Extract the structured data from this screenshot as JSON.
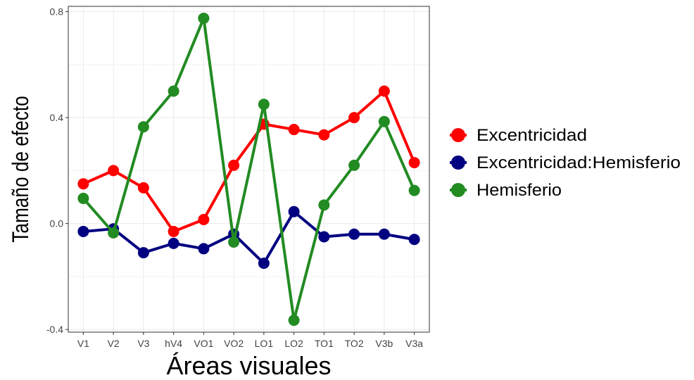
{
  "chart_data": {
    "type": "line",
    "xlabel": "Áreas visuales",
    "ylabel": "Tamaño de efecto",
    "categories": [
      "V1",
      "V2",
      "V3",
      "hV4",
      "VO1",
      "VO2",
      "LO1",
      "LO2",
      "TO1",
      "TO2",
      "V3b",
      "V3a"
    ],
    "ylim": [
      -0.41,
      0.82
    ],
    "yticks": [
      -0.4,
      0.0,
      0.4,
      0.8
    ],
    "ytick_labels": [
      "-0.4",
      "0.0",
      "0.4",
      "0.8"
    ],
    "grid": true,
    "legend_position": "right",
    "series": [
      {
        "name": "Excentricidad",
        "color": "#ff0000",
        "values": [
          0.15,
          0.2,
          0.135,
          -0.03,
          0.015,
          0.22,
          0.375,
          0.355,
          0.335,
          0.4,
          0.5,
          0.23
        ]
      },
      {
        "name": "Excentricidad:Hemisferio",
        "color": "#000080",
        "values": [
          -0.03,
          -0.02,
          -0.11,
          -0.075,
          -0.095,
          -0.04,
          -0.15,
          0.045,
          -0.05,
          -0.04,
          -0.04,
          -0.06
        ]
      },
      {
        "name": "Hemisferio",
        "color": "#228b22",
        "values": [
          0.095,
          -0.035,
          0.365,
          0.5,
          0.775,
          -0.07,
          0.45,
          -0.365,
          0.07,
          0.22,
          0.385,
          0.125
        ]
      }
    ]
  }
}
